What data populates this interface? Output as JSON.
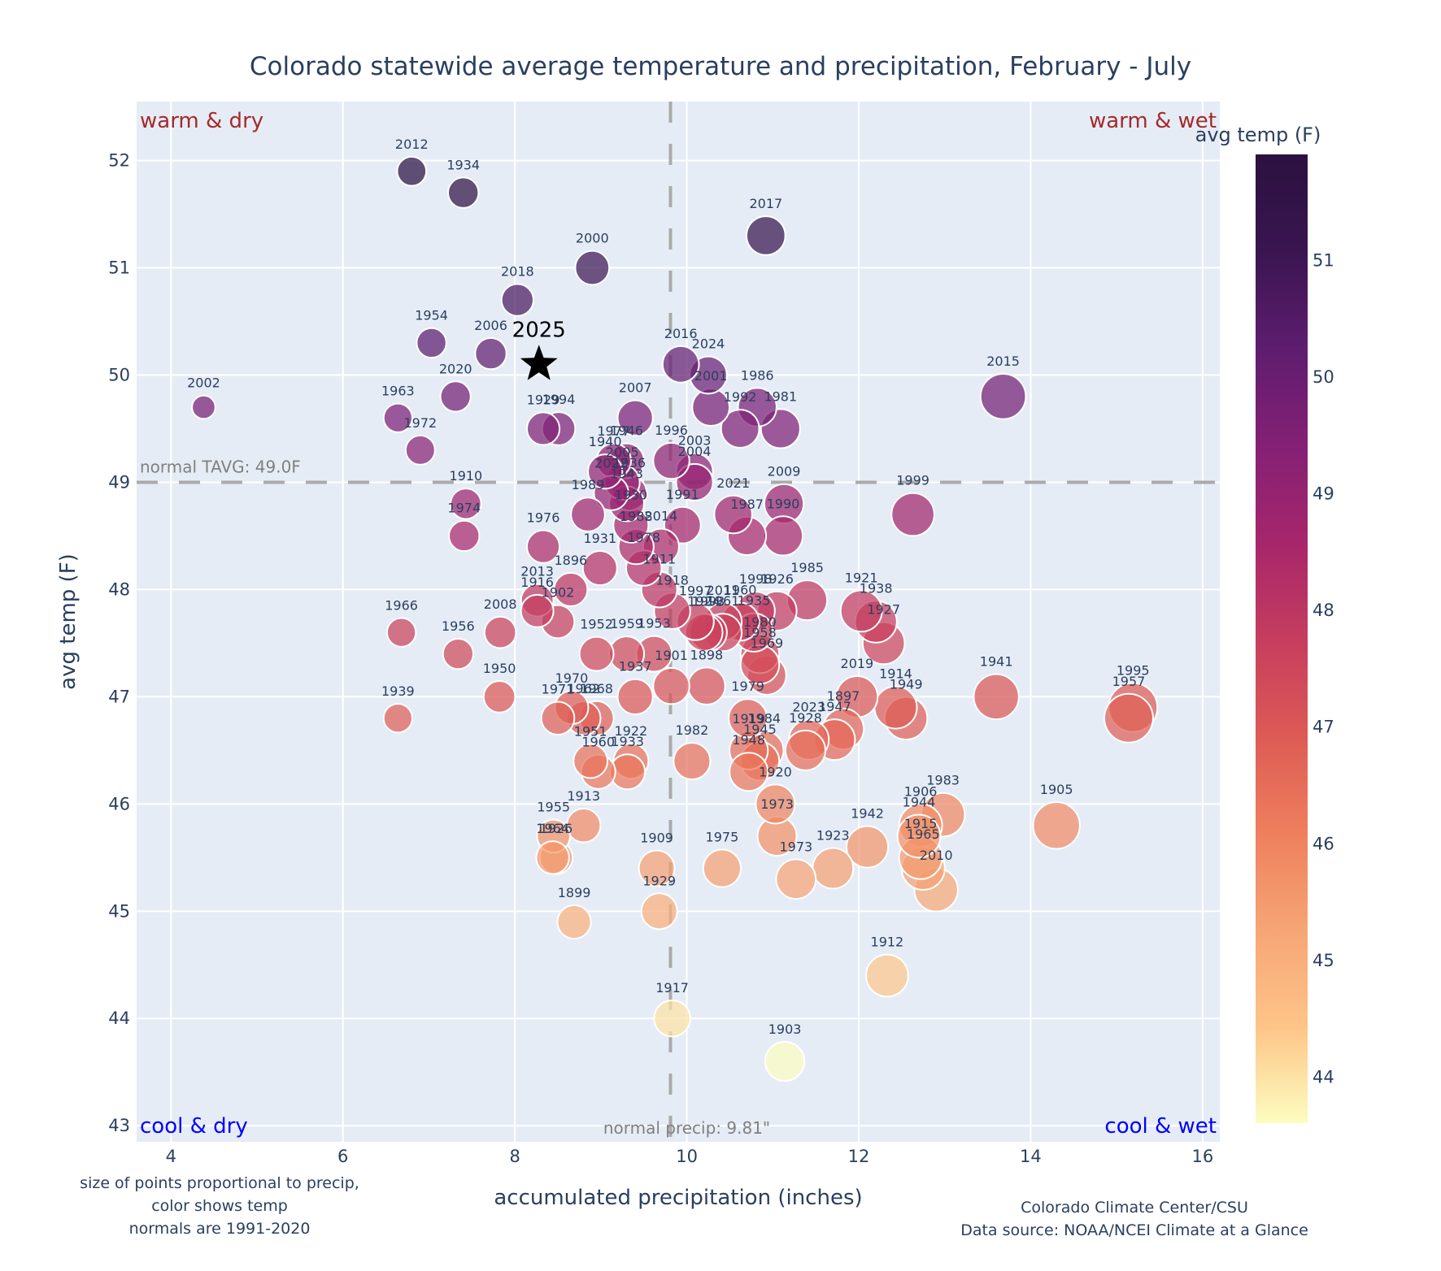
{
  "chart_data": {
    "type": "scatter",
    "title": "Colorado statewide average temperature and precipitation, February - July",
    "xlabel": "accumulated precipitation (inches)",
    "ylabel": "avg temp (F)",
    "xlim": [
      3.6,
      16.2
    ],
    "ylim": [
      42.85,
      52.55
    ],
    "xticks": [
      4,
      6,
      8,
      10,
      12,
      14,
      16
    ],
    "yticks": [
      43,
      44,
      45,
      46,
      47,
      48,
      49,
      50,
      51,
      52
    ],
    "grid": true,
    "normal_temp": 49.0,
    "normal_precip": 9.81,
    "normal_temp_label": "normal TAVG: 49.0F",
    "normal_precip_label": "normal precip: 9.81\"",
    "quadrants": {
      "top_left": "warm & dry",
      "top_right": "warm & wet",
      "bottom_left": "cool & dry",
      "bottom_right": "cool & wet"
    },
    "colorbar": {
      "title": "avg temp (F)",
      "ticks": [
        44,
        45,
        46,
        47,
        48,
        49,
        50,
        51
      ],
      "range": [
        43.6,
        51.9
      ],
      "colorscale": [
        "#fcfdbf",
        "#fec488",
        "#f6a575",
        "#ee7f5d",
        "#dd5a55",
        "#c63d5e",
        "#a6266b",
        "#842075",
        "#5e1d6f",
        "#3a1550",
        "#2b1140"
      ]
    },
    "highlight": {
      "label": "2025",
      "x": 8.28,
      "y": 50.1,
      "marker": "star"
    },
    "notes_left": [
      "size of points proportional to precip,",
      "color shows temp",
      "normals are 1991-2020"
    ],
    "notes_right": [
      "Colorado Climate Center/CSU",
      "Data source: NOAA/NCEI Climate at a Glance"
    ],
    "points": [
      {
        "year": "2012",
        "x": 6.8,
        "y": 51.9
      },
      {
        "year": "1934",
        "x": 7.4,
        "y": 51.7
      },
      {
        "year": "2017",
        "x": 10.92,
        "y": 51.3
      },
      {
        "year": "2000",
        "x": 8.9,
        "y": 51.0
      },
      {
        "year": "2018",
        "x": 8.03,
        "y": 50.7
      },
      {
        "year": "1954",
        "x": 7.03,
        "y": 50.3
      },
      {
        "year": "2006",
        "x": 7.72,
        "y": 50.2
      },
      {
        "year": "2016",
        "x": 9.93,
        "y": 50.1
      },
      {
        "year": "2024",
        "x": 10.25,
        "y": 50.0
      },
      {
        "year": "2015",
        "x": 13.68,
        "y": 49.8
      },
      {
        "year": "2020",
        "x": 7.31,
        "y": 49.8
      },
      {
        "year": "2001",
        "x": 10.28,
        "y": 49.7
      },
      {
        "year": "1986",
        "x": 10.82,
        "y": 49.7
      },
      {
        "year": "2002",
        "x": 4.38,
        "y": 49.7
      },
      {
        "year": "1963",
        "x": 6.64,
        "y": 49.6
      },
      {
        "year": "2007",
        "x": 9.4,
        "y": 49.6
      },
      {
        "year": "1992",
        "x": 10.62,
        "y": 49.5
      },
      {
        "year": "1981",
        "x": 11.09,
        "y": 49.5
      },
      {
        "year": "1929b",
        "x": 8.33,
        "y": 49.5
      },
      {
        "year": "1994",
        "x": 8.51,
        "y": 49.5
      },
      {
        "year": "1972",
        "x": 6.9,
        "y": 49.3
      },
      {
        "year": "1977",
        "x": 9.15,
        "y": 49.2
      },
      {
        "year": "1946",
        "x": 9.3,
        "y": 49.2
      },
      {
        "year": "1996",
        "x": 9.82,
        "y": 49.2
      },
      {
        "year": "2003",
        "x": 10.09,
        "y": 49.1
      },
      {
        "year": "1940",
        "x": 9.05,
        "y": 49.1
      },
      {
        "year": "2005",
        "x": 9.25,
        "y": 49.0
      },
      {
        "year": "2004",
        "x": 10.09,
        "y": 49.0
      },
      {
        "year": "1936",
        "x": 9.33,
        "y": 48.9
      },
      {
        "year": "2022",
        "x": 9.12,
        "y": 48.9
      },
      {
        "year": "2009",
        "x": 11.13,
        "y": 48.8
      },
      {
        "year": "1910",
        "x": 7.43,
        "y": 48.8
      },
      {
        "year": "1943",
        "x": 9.3,
        "y": 48.8
      },
      {
        "year": "1999",
        "x": 12.63,
        "y": 48.7
      },
      {
        "year": "2021",
        "x": 10.54,
        "y": 48.7
      },
      {
        "year": "1991",
        "x": 9.95,
        "y": 48.6
      },
      {
        "year": "1989",
        "x": 8.85,
        "y": 48.7
      },
      {
        "year": "1930",
        "x": 9.35,
        "y": 48.6
      },
      {
        "year": "1987",
        "x": 10.7,
        "y": 48.5
      },
      {
        "year": "1990",
        "x": 11.12,
        "y": 48.5
      },
      {
        "year": "1974",
        "x": 7.41,
        "y": 48.5
      },
      {
        "year": "2014",
        "x": 9.7,
        "y": 48.4
      },
      {
        "year": "1976",
        "x": 8.33,
        "y": 48.4
      },
      {
        "year": "1988",
        "x": 9.41,
        "y": 48.4
      },
      {
        "year": "1978",
        "x": 9.5,
        "y": 48.2
      },
      {
        "year": "1931",
        "x": 8.99,
        "y": 48.2
      },
      {
        "year": "1911",
        "x": 9.68,
        "y": 48.0
      },
      {
        "year": "1896",
        "x": 8.65,
        "y": 48.0
      },
      {
        "year": "1985",
        "x": 11.4,
        "y": 47.9
      },
      {
        "year": "2013",
        "x": 8.26,
        "y": 47.9
      },
      {
        "year": "1918",
        "x": 9.83,
        "y": 47.8
      },
      {
        "year": "1921",
        "x": 12.03,
        "y": 47.8
      },
      {
        "year": "1998",
        "x": 10.8,
        "y": 47.8
      },
      {
        "year": "1926",
        "x": 11.05,
        "y": 47.8
      },
      {
        "year": "2011",
        "x": 10.42,
        "y": 47.7
      },
      {
        "year": "1938",
        "x": 12.2,
        "y": 47.7
      },
      {
        "year": "1916",
        "x": 8.26,
        "y": 47.8
      },
      {
        "year": "1997",
        "x": 10.1,
        "y": 47.7
      },
      {
        "year": "1960",
        "x": 10.62,
        "y": 47.7
      },
      {
        "year": "1902",
        "x": 8.5,
        "y": 47.7
      },
      {
        "year": "1924",
        "x": 10.2,
        "y": 47.6
      },
      {
        "year": "1961",
        "x": 10.42,
        "y": 47.6
      },
      {
        "year": "1966",
        "x": 6.68,
        "y": 47.6
      },
      {
        "year": "1927",
        "x": 12.29,
        "y": 47.5
      },
      {
        "year": "1935",
        "x": 10.78,
        "y": 47.6
      },
      {
        "year": "2008",
        "x": 7.83,
        "y": 47.6
      },
      {
        "year": "1952",
        "x": 8.95,
        "y": 47.4
      },
      {
        "year": "1956",
        "x": 7.34,
        "y": 47.4
      },
      {
        "year": "1959",
        "x": 9.3,
        "y": 47.4
      },
      {
        "year": "1953",
        "x": 9.62,
        "y": 47.4
      },
      {
        "year": "1980",
        "x": 10.85,
        "y": 47.4
      },
      {
        "year": "1993",
        "x": 10.25,
        "y": 47.6
      },
      {
        "year": "1958",
        "x": 10.85,
        "y": 47.3
      },
      {
        "year": "1901",
        "x": 9.82,
        "y": 47.1
      },
      {
        "year": "1969",
        "x": 10.93,
        "y": 47.2
      },
      {
        "year": "1950",
        "x": 7.82,
        "y": 47.0
      },
      {
        "year": "1937",
        "x": 9.4,
        "y": 47.0
      },
      {
        "year": "2019",
        "x": 11.98,
        "y": 47.0
      },
      {
        "year": "1941",
        "x": 13.6,
        "y": 47.0
      },
      {
        "year": "1995",
        "x": 15.19,
        "y": 46.9
      },
      {
        "year": "1898",
        "x": 10.23,
        "y": 47.1
      },
      {
        "year": "1914",
        "x": 12.43,
        "y": 46.9
      },
      {
        "year": "1970",
        "x": 8.66,
        "y": 46.9
      },
      {
        "year": "1957",
        "x": 15.14,
        "y": 46.8
      },
      {
        "year": "1979",
        "x": 10.71,
        "y": 46.8
      },
      {
        "year": "1949",
        "x": 12.55,
        "y": 46.8
      },
      {
        "year": "1962",
        "x": 8.8,
        "y": 46.8
      },
      {
        "year": "1939",
        "x": 6.64,
        "y": 46.8
      },
      {
        "year": "1971",
        "x": 8.5,
        "y": 46.8
      },
      {
        "year": "1968",
        "x": 8.95,
        "y": 46.8
      },
      {
        "year": "1897",
        "x": 11.82,
        "y": 46.7
      },
      {
        "year": "2023",
        "x": 11.42,
        "y": 46.6
      },
      {
        "year": "1947",
        "x": 11.72,
        "y": 46.6
      },
      {
        "year": "1919",
        "x": 10.72,
        "y": 46.5
      },
      {
        "year": "1928",
        "x": 11.38,
        "y": 46.5
      },
      {
        "year": "1984",
        "x": 10.9,
        "y": 46.5
      },
      {
        "year": "1922",
        "x": 9.35,
        "y": 46.4
      },
      {
        "year": "1982",
        "x": 10.06,
        "y": 46.4
      },
      {
        "year": "1951",
        "x": 8.88,
        "y": 46.4
      },
      {
        "year": "1945",
        "x": 10.85,
        "y": 46.4
      },
      {
        "year": "1960b",
        "x": 8.97,
        "y": 46.3
      },
      {
        "year": "1933",
        "x": 9.31,
        "y": 46.3
      },
      {
        "year": "1948",
        "x": 10.72,
        "y": 46.3
      },
      {
        "year": "1920",
        "x": 11.03,
        "y": 46.0
      },
      {
        "year": "1983",
        "x": 12.98,
        "y": 45.9
      },
      {
        "year": "1906",
        "x": 12.72,
        "y": 45.8
      },
      {
        "year": "1913",
        "x": 8.8,
        "y": 45.8
      },
      {
        "year": "1905",
        "x": 14.3,
        "y": 45.8
      },
      {
        "year": "1944",
        "x": 12.7,
        "y": 45.7
      },
      {
        "year": "1955",
        "x": 8.45,
        "y": 45.7
      },
      {
        "year": "1973",
        "x": 11.05,
        "y": 45.7
      },
      {
        "year": "1942",
        "x": 12.1,
        "y": 45.6
      },
      {
        "year": "1915",
        "x": 12.72,
        "y": 45.5
      },
      {
        "year": "1964",
        "x": 8.44,
        "y": 45.5
      },
      {
        "year": "1926b",
        "x": 8.48,
        "y": 45.5
      },
      {
        "year": "1909",
        "x": 9.65,
        "y": 45.4
      },
      {
        "year": "1975",
        "x": 10.41,
        "y": 45.4
      },
      {
        "year": "1923",
        "x": 11.7,
        "y": 45.4
      },
      {
        "year": "1965",
        "x": 12.75,
        "y": 45.4
      },
      {
        "year": "1973b",
        "x": 11.27,
        "y": 45.3
      },
      {
        "year": "2010",
        "x": 12.9,
        "y": 45.2
      },
      {
        "year": "1929",
        "x": 9.68,
        "y": 45.0
      },
      {
        "year": "1899",
        "x": 8.69,
        "y": 44.9
      },
      {
        "year": "1912",
        "x": 12.33,
        "y": 44.4
      },
      {
        "year": "1917",
        "x": 9.83,
        "y": 44.0
      },
      {
        "year": "1903",
        "x": 11.14,
        "y": 43.6
      }
    ]
  }
}
